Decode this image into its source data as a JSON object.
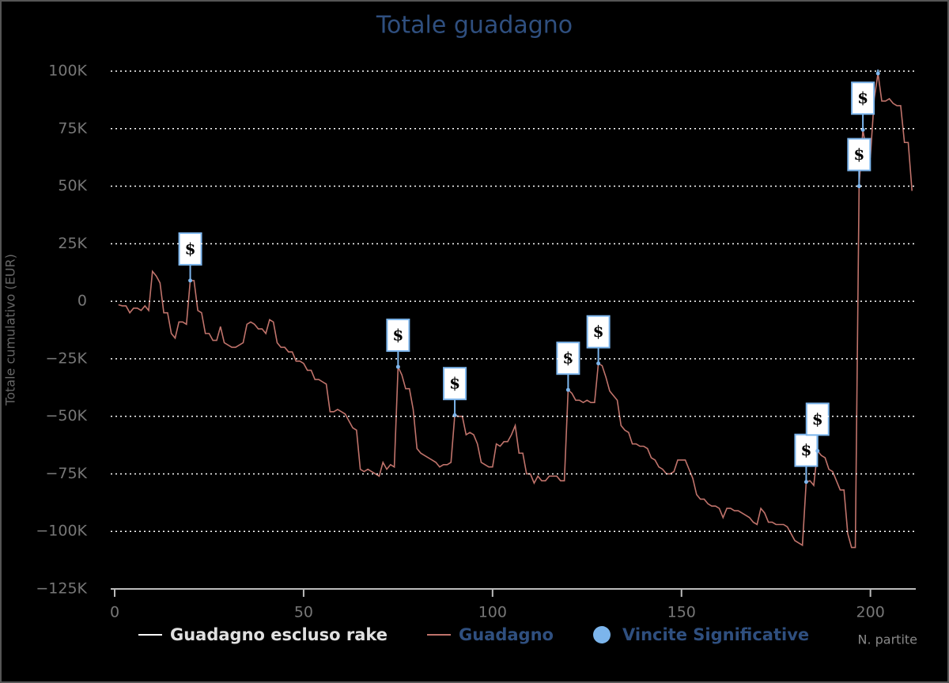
{
  "chart_data": {
    "type": "line",
    "title": "Totale guadagno",
    "xlabel": "N. partite",
    "ylabel": "Totale cumulativo (EUR)",
    "xlim": [
      0,
      212
    ],
    "xticks": [
      0,
      50,
      100,
      150,
      200
    ],
    "ylim": [
      -125000,
      100000
    ],
    "yticks": [
      {
        "value": 100000,
        "label": "100K"
      },
      {
        "value": 75000,
        "label": "75K"
      },
      {
        "value": 50000,
        "label": "50K"
      },
      {
        "value": 25000,
        "label": "25K"
      },
      {
        "value": 0,
        "label": "0"
      },
      {
        "value": -25000,
        "label": "−25K"
      },
      {
        "value": -50000,
        "label": "−50K"
      },
      {
        "value": -75000,
        "label": "−75K"
      },
      {
        "value": -100000,
        "label": "−100K"
      },
      {
        "value": -125000,
        "label": "−125K"
      }
    ],
    "grid": true,
    "legend": "bottom",
    "series": [
      {
        "name": "Guadagno escluso rake",
        "color": "#ffffff"
      },
      {
        "name": "Guadagno",
        "color": "#c0736b",
        "x": [
          1,
          2,
          3,
          4,
          5,
          6,
          7,
          8,
          9,
          10,
          11,
          12,
          13,
          14,
          15,
          16,
          17,
          18,
          19,
          20,
          21,
          22,
          23,
          24,
          25,
          26,
          27,
          28,
          29,
          30,
          31,
          32,
          33,
          34,
          35,
          36,
          37,
          38,
          39,
          40,
          41,
          42,
          43,
          44,
          45,
          46,
          47,
          48,
          49,
          50,
          51,
          52,
          53,
          54,
          55,
          56,
          57,
          58,
          59,
          60,
          61,
          62,
          63,
          64,
          65,
          66,
          67,
          68,
          69,
          70,
          71,
          72,
          73,
          74,
          75,
          76,
          77,
          78,
          79,
          80,
          81,
          82,
          83,
          84,
          85,
          86,
          87,
          88,
          89,
          90,
          91,
          92,
          93,
          94,
          95,
          96,
          97,
          98,
          99,
          100,
          101,
          102,
          103,
          104,
          105,
          106,
          107,
          108,
          109,
          110,
          111,
          112,
          113,
          114,
          115,
          116,
          117,
          118,
          119,
          120,
          121,
          122,
          123,
          124,
          125,
          126,
          127,
          128,
          129,
          130,
          131,
          132,
          133,
          134,
          135,
          136,
          137,
          138,
          139,
          140,
          141,
          142,
          143,
          144,
          145,
          146,
          147,
          148,
          149,
          150,
          151,
          152,
          153,
          154,
          155,
          156,
          157,
          158,
          159,
          160,
          161,
          162,
          163,
          164,
          165,
          166,
          167,
          168,
          169,
          170,
          171,
          172,
          173,
          174,
          175,
          176,
          177,
          178,
          179,
          180,
          181,
          182,
          183,
          184,
          185,
          186,
          187,
          188,
          189,
          190,
          191,
          192,
          193,
          194,
          195,
          196,
          197,
          198,
          199,
          200,
          201,
          202,
          203,
          204,
          205,
          206,
          207,
          208,
          209,
          210,
          211
        ],
        "values": [
          -1500,
          -2000,
          -2000,
          -5000,
          -3000,
          -3000,
          -4000,
          -2000,
          -4000,
          13000,
          11000,
          8000,
          -5000,
          -5000,
          -14000,
          -16000,
          -9000,
          -9000,
          -10000,
          9000,
          9000,
          -4000,
          -5000,
          -14000,
          -14000,
          -17000,
          -17000,
          -11000,
          -18000,
          -19000,
          -20000,
          -20000,
          -19000,
          -18000,
          -10000,
          -9000,
          -10000,
          -12000,
          -12000,
          -14000,
          -8000,
          -9000,
          -18000,
          -20000,
          -20000,
          -22000,
          -22000,
          -26000,
          -26000,
          -27000,
          -30000,
          -30000,
          -34000,
          -34000,
          -35000,
          -36000,
          -48000,
          -48000,
          -47000,
          -48000,
          -49000,
          -52000,
          -55000,
          -56000,
          -73000,
          -74000,
          -73000,
          -74000,
          -75000,
          -76000,
          -70000,
          -73000,
          -71000,
          -72000,
          -28500,
          -32000,
          -38000,
          -38000,
          -47000,
          -64000,
          -66000,
          -67000,
          -68000,
          -69000,
          -70000,
          -72000,
          -71000,
          -71000,
          -70000,
          -49500,
          -50000,
          -50000,
          -58000,
          -57000,
          -58000,
          -62000,
          -70000,
          -71000,
          -72000,
          -72000,
          -62000,
          -63000,
          -61000,
          -61000,
          -58000,
          -54000,
          -66000,
          -66000,
          -75000,
          -75000,
          -79000,
          -76000,
          -78000,
          -78000,
          -76000,
          -76000,
          -76000,
          -78000,
          -78000,
          -38500,
          -40000,
          -43000,
          -43000,
          -44000,
          -43000,
          -44000,
          -44000,
          -27000,
          -28000,
          -33000,
          -39000,
          -41000,
          -43000,
          -54000,
          -56000,
          -57000,
          -62000,
          -62000,
          -63000,
          -63000,
          -64000,
          -68000,
          -69000,
          -72000,
          -73000,
          -75000,
          -75000,
          -74000,
          -69000,
          -69000,
          -69000,
          -73000,
          -77000,
          -84000,
          -86000,
          -86000,
          -88000,
          -89000,
          -89000,
          -90000,
          -94000,
          -90000,
          -90000,
          -91000,
          -91000,
          -92000,
          -93000,
          -94000,
          -96000,
          -97000,
          -90000,
          -92000,
          -96000,
          -96000,
          -97000,
          -97000,
          -97000,
          -98000,
          -101000,
          -104000,
          -105000,
          -106000,
          -78500,
          -78000,
          -80000,
          -65000,
          -67000,
          -68000,
          -73000,
          -74000,
          -78000,
          -82000,
          -82000,
          -101000,
          -107000,
          -107000,
          50000,
          74500,
          65000,
          63000,
          88000,
          99000,
          87000,
          87000,
          88000,
          86000,
          85000,
          85000,
          69000,
          69000,
          48000
        ]
      },
      {
        "name": "Vincite Significative",
        "color": "#7cb5ec",
        "flag_text": "$",
        "x": [
          20,
          75,
          90,
          120,
          128,
          183,
          186,
          197,
          198,
          202
        ],
        "values": [
          9000,
          -28500,
          -49500,
          -38500,
          -27000,
          -78500,
          -65000,
          50000,
          74500,
          99000
        ]
      }
    ]
  }
}
